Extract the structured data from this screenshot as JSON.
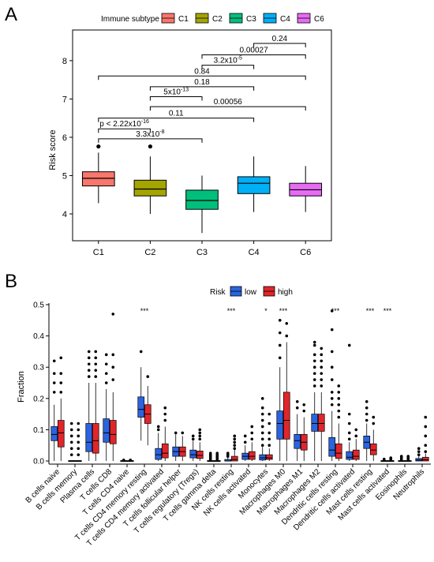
{
  "chart_data": [
    {
      "panel": "A",
      "type": "box",
      "legend": {
        "title": "Immune subtype",
        "placement": "top"
      },
      "ylabel": "Risk score",
      "ylim": [
        3.3,
        8.8
      ],
      "yticks": [
        4,
        5,
        6,
        7,
        8
      ],
      "categories": [
        "C1",
        "C2",
        "C3",
        "C4",
        "C6"
      ],
      "colors": [
        "#F8766D",
        "#A3A500",
        "#00BF7D",
        "#00B0F6",
        "#E76BF3"
      ],
      "boxes": [
        {
          "name": "C1",
          "whisker_low": 4.28,
          "q1": 4.73,
          "median": 4.93,
          "q3": 5.1,
          "whisker_high": 5.6,
          "outliers": [
            5.76
          ]
        },
        {
          "name": "C2",
          "whisker_low": 4.0,
          "q1": 4.47,
          "median": 4.65,
          "q3": 4.88,
          "whisker_high": 5.5,
          "outliers": [
            5.76
          ]
        },
        {
          "name": "C3",
          "whisker_low": 3.5,
          "q1": 4.12,
          "median": 4.35,
          "q3": 4.62,
          "whisker_high": 5.0,
          "outliers": []
        },
        {
          "name": "C4",
          "whisker_low": 4.05,
          "q1": 4.53,
          "median": 4.8,
          "q3": 4.97,
          "whisker_high": 5.5,
          "outliers": []
        },
        {
          "name": "C6",
          "whisker_low": 4.05,
          "q1": 4.47,
          "median": 4.63,
          "q3": 4.8,
          "whisker_high": 5.25,
          "outliers": []
        }
      ],
      "comparisons": [
        {
          "from": 0,
          "to": 2,
          "y": 5.96,
          "base": "3.3x10",
          "sup": "-8"
        },
        {
          "from": 0,
          "to": 1,
          "y": 6.22,
          "base": "p < 2.22x10",
          "sup": "-16"
        },
        {
          "from": 0,
          "to": 3,
          "y": 6.5,
          "base": "0.11",
          "sup": ""
        },
        {
          "from": 1,
          "to": 4,
          "y": 6.8,
          "base": "0.00056",
          "sup": ""
        },
        {
          "from": 1,
          "to": 2,
          "y": 7.06,
          "base": "5x10",
          "sup": "-13"
        },
        {
          "from": 1,
          "to": 3,
          "y": 7.32,
          "base": "0.18",
          "sup": ""
        },
        {
          "from": 0,
          "to": 4,
          "y": 7.6,
          "base": "0.84",
          "sup": ""
        },
        {
          "from": 2,
          "to": 3,
          "y": 7.88,
          "base": "3.2x10",
          "sup": "-5"
        },
        {
          "from": 2,
          "to": 4,
          "y": 8.15,
          "base": "0.00027",
          "sup": ""
        },
        {
          "from": 3,
          "to": 4,
          "y": 8.45,
          "base": "0.24",
          "sup": ""
        }
      ]
    },
    {
      "panel": "B",
      "type": "box",
      "legend": {
        "title": "Risk",
        "placement": "top",
        "entries": [
          "low",
          "high"
        ]
      },
      "ylabel": "Fraction",
      "ylim": [
        -0.01,
        0.505
      ],
      "yticks": [
        0.0,
        0.1,
        0.2,
        0.3,
        0.4,
        0.5
      ],
      "colors": {
        "low": "#2B64E0",
        "high": "#E0262B"
      },
      "categories": [
        "B cells naive",
        "B cells memory",
        "Plasma cells",
        "T cells CD8",
        "T cells CD4 naive",
        "T cells CD4 memory resting",
        "T cells CD4 memory activated",
        "T cells follicular helper",
        "T cells regulatory (Tregs)",
        "T cells gamma delta",
        "NK cells resting",
        "NK cells activated",
        "Monocytes",
        "Macrophages M0",
        "Macrophages M1",
        "Macrophages M2",
        "Dendritic cells resting",
        "Dendritic cells activated",
        "Mast cells resting",
        "Mast cells activated",
        "Eosinophils",
        "Neutrophils"
      ],
      "significance": [
        "",
        "",
        "",
        "",
        "",
        "***",
        "",
        "",
        "",
        "",
        "***",
        "",
        "*",
        "***",
        "",
        "",
        "***",
        "",
        "***",
        "***",
        "",
        ""
      ],
      "series": [
        {
          "name": "low",
          "boxes": [
            {
              "whisker_low": 0.0,
              "q1": 0.065,
              "median": 0.085,
              "q3": 0.11,
              "whisker_high": 0.18,
              "outliers": [
                0.22,
                0.25,
                0.28,
                0.32
              ]
            },
            {
              "whisker_low": 0.0,
              "q1": 0.0,
              "median": 0.0,
              "q3": 0.0,
              "whisker_high": 0.0,
              "outliers": [
                0.02,
                0.04,
                0.06,
                0.08,
                0.1,
                0.12
              ]
            },
            {
              "whisker_low": 0.0,
              "q1": 0.03,
              "median": 0.06,
              "q3": 0.12,
              "whisker_high": 0.25,
              "outliers": [
                0.27,
                0.29,
                0.31,
                0.33,
                0.35
              ]
            },
            {
              "whisker_low": 0.0,
              "q1": 0.06,
              "median": 0.09,
              "q3": 0.135,
              "whisker_high": 0.23,
              "outliers": [
                0.25,
                0.28,
                0.31,
                0.34
              ]
            },
            {
              "whisker_low": 0.0,
              "q1": 0.0,
              "median": 0.0,
              "q3": 0.0,
              "whisker_high": 0.0,
              "outliers": [
                0.003
              ]
            },
            {
              "whisker_low": 0.065,
              "q1": 0.14,
              "median": 0.165,
              "q3": 0.205,
              "whisker_high": 0.3,
              "outliers": [
                0.35
              ]
            },
            {
              "whisker_low": 0.0,
              "q1": 0.005,
              "median": 0.02,
              "q3": 0.04,
              "whisker_high": 0.09,
              "outliers": [
                0.1,
                0.11
              ]
            },
            {
              "whisker_low": 0.0,
              "q1": 0.015,
              "median": 0.03,
              "q3": 0.045,
              "whisker_high": 0.085,
              "outliers": [
                0.09
              ]
            },
            {
              "whisker_low": 0.0,
              "q1": 0.01,
              "median": 0.02,
              "q3": 0.035,
              "whisker_high": 0.065,
              "outliers": [
                0.07,
                0.08
              ]
            },
            {
              "whisker_low": 0.0,
              "q1": 0.0,
              "median": 0.0,
              "q3": 0.0,
              "whisker_high": 0.0,
              "outliers": [
                0.005,
                0.01,
                0.015,
                0.02,
                0.025
              ]
            },
            {
              "whisker_low": 0.0,
              "q1": 0.0,
              "median": 0.0,
              "q3": 0.005,
              "whisker_high": 0.012,
              "outliers": [
                0.015,
                0.02,
                0.025
              ]
            },
            {
              "whisker_low": 0.0,
              "q1": 0.005,
              "median": 0.015,
              "q3": 0.025,
              "whisker_high": 0.05,
              "outliers": [
                0.06,
                0.08
              ]
            },
            {
              "whisker_low": 0.0,
              "q1": 0.003,
              "median": 0.01,
              "q3": 0.02,
              "whisker_high": 0.045,
              "outliers": [
                0.05,
                0.07,
                0.09,
                0.11,
                0.13,
                0.15,
                0.17,
                0.2
              ]
            },
            {
              "whisker_low": 0.0,
              "q1": 0.07,
              "median": 0.12,
              "q3": 0.16,
              "whisker_high": 0.3,
              "outliers": [
                0.33,
                0.37,
                0.41,
                0.45
              ]
            },
            {
              "whisker_low": 0.0,
              "q1": 0.04,
              "median": 0.065,
              "q3": 0.085,
              "whisker_high": 0.15,
              "outliers": [
                0.17,
                0.19
              ]
            },
            {
              "whisker_low": 0.0,
              "q1": 0.095,
              "median": 0.12,
              "q3": 0.15,
              "whisker_high": 0.22,
              "outliers": [
                0.24,
                0.26,
                0.28,
                0.3,
                0.32,
                0.34,
                0.37,
                0.38
              ]
            },
            {
              "whisker_low": 0.0,
              "q1": 0.015,
              "median": 0.035,
              "q3": 0.075,
              "whisker_high": 0.16,
              "outliers": [
                0.18,
                0.2,
                0.22,
                0.26,
                0.3,
                0.35,
                0.42,
                0.48
              ]
            },
            {
              "whisker_low": 0.0,
              "q1": 0.005,
              "median": 0.012,
              "q3": 0.03,
              "whisker_high": 0.06,
              "outliers": [
                0.07,
                0.09,
                0.12,
                0.15,
                0.37
              ]
            },
            {
              "whisker_low": 0.0,
              "q1": 0.04,
              "median": 0.06,
              "q3": 0.08,
              "whisker_high": 0.12,
              "outliers": [
                0.13,
                0.15,
                0.17,
                0.19
              ]
            },
            {
              "whisker_low": 0.0,
              "q1": 0.0,
              "median": 0.0,
              "q3": 0.0,
              "whisker_high": 0.0,
              "outliers": [
                0.003,
                0.006
              ]
            },
            {
              "whisker_low": 0.0,
              "q1": 0.0,
              "median": 0.0,
              "q3": 0.0,
              "whisker_high": 0.0,
              "outliers": [
                0.005,
                0.01,
                0.015
              ]
            },
            {
              "whisker_low": 0.0,
              "q1": 0.0,
              "median": 0.003,
              "q3": 0.008,
              "whisker_high": 0.016,
              "outliers": [
                0.02,
                0.03,
                0.04
              ]
            }
          ]
        },
        {
          "name": "high",
          "boxes": [
            {
              "whisker_low": 0.0,
              "q1": 0.045,
              "median": 0.09,
              "q3": 0.13,
              "whisker_high": 0.2,
              "outliers": [
                0.22,
                0.25,
                0.28,
                0.33
              ]
            },
            {
              "whisker_low": 0.0,
              "q1": 0.0,
              "median": 0.0,
              "q3": 0.0,
              "whisker_high": 0.0,
              "outliers": [
                0.02,
                0.04,
                0.06,
                0.08,
                0.1,
                0.12
              ]
            },
            {
              "whisker_low": 0.0,
              "q1": 0.025,
              "median": 0.065,
              "q3": 0.12,
              "whisker_high": 0.25,
              "outliers": [
                0.27,
                0.29,
                0.31,
                0.33,
                0.35
              ]
            },
            {
              "whisker_low": 0.0,
              "q1": 0.055,
              "median": 0.085,
              "q3": 0.13,
              "whisker_high": 0.22,
              "outliers": [
                0.26,
                0.3,
                0.34,
                0.47
              ]
            },
            {
              "whisker_low": 0.0,
              "q1": 0.0,
              "median": 0.0,
              "q3": 0.0,
              "whisker_high": 0.0,
              "outliers": [
                0.003
              ]
            },
            {
              "whisker_low": 0.05,
              "q1": 0.12,
              "median": 0.15,
              "q3": 0.18,
              "whisker_high": 0.24,
              "outliers": [
                0.27
              ]
            },
            {
              "whisker_low": 0.0,
              "q1": 0.01,
              "median": 0.025,
              "q3": 0.055,
              "whisker_high": 0.11,
              "outliers": [
                0.13,
                0.15,
                0.17
              ]
            },
            {
              "whisker_low": 0.0,
              "q1": 0.015,
              "median": 0.03,
              "q3": 0.045,
              "whisker_high": 0.08,
              "outliers": [
                0.09
              ]
            },
            {
              "whisker_low": 0.0,
              "q1": 0.008,
              "median": 0.018,
              "q3": 0.032,
              "whisker_high": 0.06,
              "outliers": [
                0.07,
                0.08,
                0.09,
                0.1
              ]
            },
            {
              "whisker_low": 0.0,
              "q1": 0.0,
              "median": 0.0,
              "q3": 0.0,
              "whisker_high": 0.0,
              "outliers": [
                0.005,
                0.01,
                0.015,
                0.02,
                0.025
              ]
            },
            {
              "whisker_low": 0.0,
              "q1": 0.0,
              "median": 0.005,
              "q3": 0.015,
              "whisker_high": 0.035,
              "outliers": [
                0.04,
                0.05,
                0.06,
                0.07,
                0.08
              ]
            },
            {
              "whisker_low": 0.0,
              "q1": 0.005,
              "median": 0.015,
              "q3": 0.03,
              "whisker_high": 0.06,
              "outliers": [
                0.07,
                0.09,
                0.11
              ]
            },
            {
              "whisker_low": 0.0,
              "q1": 0.005,
              "median": 0.01,
              "q3": 0.02,
              "whisker_high": 0.04,
              "outliers": [
                0.05,
                0.07,
                0.09,
                0.12,
                0.15
              ]
            },
            {
              "whisker_low": 0.0,
              "q1": 0.07,
              "median": 0.13,
              "q3": 0.22,
              "whisker_high": 0.38,
              "outliers": [
                0.4,
                0.44
              ]
            },
            {
              "whisker_low": 0.0,
              "q1": 0.035,
              "median": 0.06,
              "q3": 0.085,
              "whisker_high": 0.14,
              "outliers": [
                0.16,
                0.18
              ]
            },
            {
              "whisker_low": 0.0,
              "q1": 0.095,
              "median": 0.12,
              "q3": 0.15,
              "whisker_high": 0.22,
              "outliers": [
                0.24,
                0.26,
                0.28,
                0.3,
                0.32,
                0.34,
                0.36
              ]
            },
            {
              "whisker_low": 0.0,
              "q1": 0.008,
              "median": 0.025,
              "q3": 0.055,
              "whisker_high": 0.12,
              "outliers": [
                0.14,
                0.16,
                0.18,
                0.2,
                0.22,
                0.24
              ]
            },
            {
              "whisker_low": 0.0,
              "q1": 0.005,
              "median": 0.015,
              "q3": 0.035,
              "whisker_high": 0.07,
              "outliers": [
                0.08,
                0.1
              ]
            },
            {
              "whisker_low": 0.0,
              "q1": 0.02,
              "median": 0.035,
              "q3": 0.055,
              "whisker_high": 0.1,
              "outliers": [
                0.12,
                0.14
              ]
            },
            {
              "whisker_low": 0.0,
              "q1": 0.0,
              "median": 0.0,
              "q3": 0.0,
              "whisker_high": 0.0,
              "outliers": [
                0.003,
                0.006,
                0.01
              ]
            },
            {
              "whisker_low": 0.0,
              "q1": 0.0,
              "median": 0.0,
              "q3": 0.0,
              "whisker_high": 0.0,
              "outliers": [
                0.005,
                0.01,
                0.015
              ]
            },
            {
              "whisker_low": 0.0,
              "q1": 0.0,
              "median": 0.004,
              "q3": 0.012,
              "whisker_high": 0.024,
              "outliers": [
                0.03,
                0.05,
                0.08,
                0.11,
                0.14
              ]
            }
          ]
        }
      ]
    }
  ],
  "panels": {
    "a_letter": "A",
    "b_letter": "B"
  }
}
